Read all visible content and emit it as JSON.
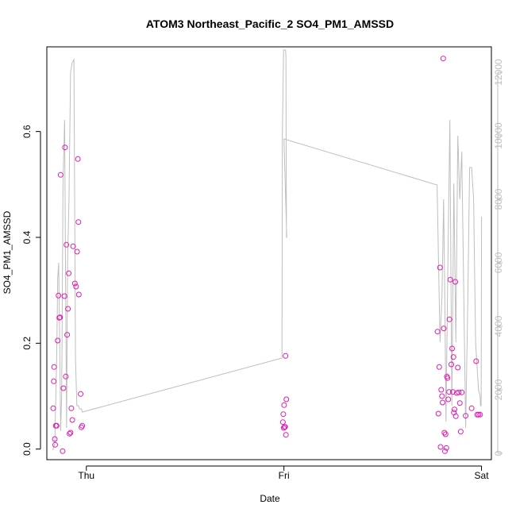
{
  "chart_data": {
    "type": "scatter",
    "title": "ATOM3 Northeast_Pacific_2 SO4_PM1_AMSSD",
    "xlabel": "Date",
    "ylabel": "SO4_PM1_AMSSD",
    "x_ticks": [
      {
        "label": "Thu",
        "day": 0
      },
      {
        "label": "Fri",
        "day": 1
      },
      {
        "label": "Sat",
        "day": 2
      }
    ],
    "y_ticks": [
      "0.0",
      "0.2",
      "0.4",
      "0.6"
    ],
    "y2_ticks": [
      "0",
      "2000",
      "4000",
      "6000",
      "8000",
      "10000",
      "12000"
    ],
    "ylim": [
      -0.02,
      0.76
    ],
    "y2lim": [
      -200,
      12800
    ],
    "xlim": [
      -0.2,
      2.05
    ],
    "colors": {
      "points": "#e01ab0",
      "line": "#bebebe",
      "axis": "#000000",
      "axis2": "#bebebe"
    },
    "series": [
      {
        "kind": "points",
        "x": [
          -0.168,
          -0.165,
          -0.163,
          -0.16,
          -0.158,
          -0.155,
          -0.15,
          -0.145,
          -0.141,
          -0.137,
          -0.133,
          -0.13,
          -0.12,
          -0.116,
          -0.111,
          -0.108,
          -0.104,
          -0.101,
          -0.097,
          -0.093,
          -0.089,
          -0.085,
          -0.08,
          -0.076,
          -0.071,
          -0.067,
          -0.058,
          -0.052,
          -0.047,
          -0.043,
          -0.04,
          -0.038,
          -0.029,
          -0.025,
          -0.021,
          0.995,
          0.997,
          0.999,
          1.001,
          1.003,
          1.006,
          1.008,
          1.01,
          1.012,
          1.777,
          1.782,
          1.786,
          1.79,
          1.793,
          1.796,
          1.8,
          1.803,
          1.806,
          1.809,
          1.812,
          1.815,
          1.818,
          1.822,
          1.825,
          1.828,
          1.832,
          1.836,
          1.838,
          1.842,
          1.847,
          1.851,
          1.855,
          1.858,
          1.86,
          1.863,
          1.867,
          1.87,
          1.875,
          1.88,
          1.885,
          1.89,
          1.895,
          1.9,
          1.92,
          1.95,
          1.973,
          1.978,
          1.985,
          1.993
        ],
        "y": [
          0.077,
          0.128,
          0.155,
          0.019,
          0.008,
          0.044,
          0.044,
          0.205,
          0.29,
          0.248,
          0.249,
          0.518,
          -0.004,
          0.115,
          0.289,
          0.57,
          0.137,
          0.386,
          0.216,
          0.265,
          0.332,
          0.029,
          0.031,
          0.077,
          0.055,
          0.383,
          0.313,
          0.307,
          0.373,
          0.548,
          0.429,
          0.292,
          0.104,
          0.041,
          0.044,
          0.051,
          0.066,
          0.04,
          0.083,
          0.042,
          0.042,
          0.176,
          0.027,
          0.094,
          0.222,
          0.067,
          0.155,
          0.343,
          0.004,
          0.112,
          0.1,
          0.088,
          0.738,
          0.228,
          0.031,
          -0.004,
          0.028,
          0.002,
          0.137,
          0.134,
          0.094,
          0.108,
          0.245,
          0.32,
          0.16,
          0.19,
          0.108,
          0.174,
          0.069,
          0.075,
          0.316,
          0.062,
          0.106,
          0.154,
          0.107,
          0.087,
          0.033,
          0.107,
          0.063,
          0.077,
          0.166,
          0.065,
          0.065,
          0.065
        ]
      },
      {
        "kind": "line",
        "axis": "right",
        "x": [
          -0.17,
          -0.16,
          -0.15,
          -0.145,
          -0.14,
          -0.135,
          -0.13,
          -0.125,
          -0.118,
          -0.11,
          -0.105,
          -0.1,
          -0.095,
          -0.088,
          -0.08,
          -0.072,
          -0.063,
          -0.055,
          -0.048,
          -0.04,
          -0.035,
          -0.03,
          -0.025,
          -0.02,
          0.99,
          0.992,
          0.998,
          1.004,
          1.008,
          1.01,
          1.011,
          1.012,
          1.013,
          1.014,
          1.0,
          1.775,
          1.79,
          1.8,
          1.808,
          1.815,
          1.82,
          1.83,
          1.84,
          1.85,
          1.86,
          1.87,
          1.88,
          1.89,
          1.9,
          1.91,
          1.92,
          1.93,
          1.94,
          1.95,
          1.96,
          1.97,
          1.975,
          1.985,
          1.993,
          1.995,
          1.998,
          2.0
        ],
        "y": [
          100,
          300,
          3000,
          5500,
          6000,
          3500,
          700,
          1800,
          8500,
          10500,
          5500,
          800,
          6000,
          8000,
          12000,
          12300,
          12400,
          3000,
          1500,
          1500,
          1400,
          1400,
          1400,
          1300,
          3000,
          10000,
          12700,
          12700,
          12700,
          12500,
          10000,
          8000,
          6800,
          6800,
          9900,
          8450,
          3500,
          5000,
          8000,
          4500,
          1000,
          6000,
          10500,
          1500,
          8500,
          3500,
          10000,
          8000,
          9500,
          5000,
          800,
          4500,
          9000,
          9000,
          8000,
          3500,
          3000,
          2000,
          1800,
          1500,
          1500,
          7450
        ]
      }
    ]
  }
}
